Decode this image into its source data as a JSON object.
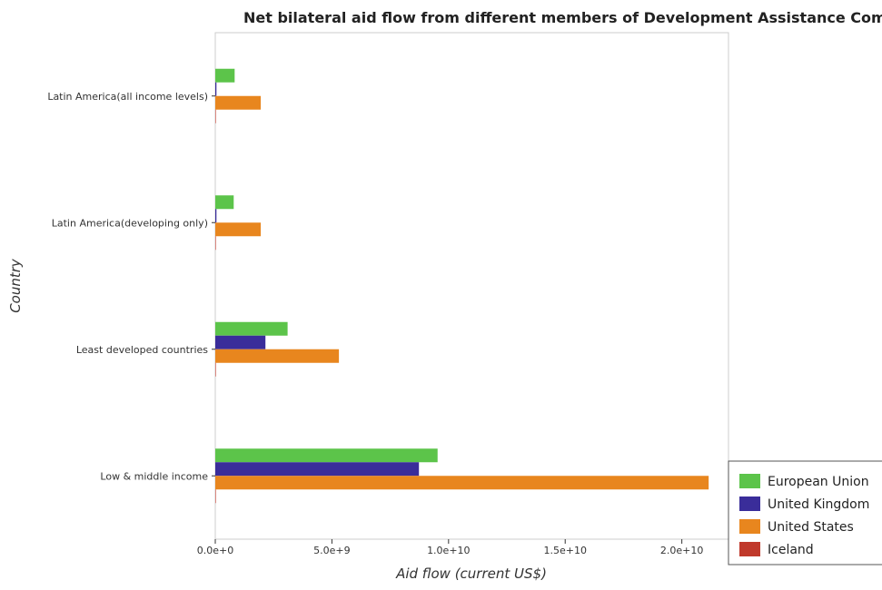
{
  "chart_data": {
    "type": "bar",
    "orientation": "horizontal",
    "title": "Net bilateral aid flow from different members of Development Assistance Committee in",
    "xlabel": "Aid flow (current US$)",
    "ylabel": "Country",
    "categories": [
      "Latin America(all income levels)",
      "Latin America(developing only)",
      "Least developed countries",
      "Low & middle income"
    ],
    "series": [
      {
        "name": "European Union",
        "color": "#5cc44a",
        "values": [
          830000000,
          790000000,
          3100000000,
          9530000000
        ]
      },
      {
        "name": "United Kingdom",
        "color": "#3a2d9a",
        "values": [
          50000000,
          50000000,
          2150000000,
          8730000000
        ]
      },
      {
        "name": "United States",
        "color": "#e8861e",
        "values": [
          1950000000,
          1950000000,
          5300000000,
          21150000000
        ]
      },
      {
        "name": "Iceland",
        "color": "#c0392b",
        "values": [
          1000000,
          1000000,
          2000000,
          5000000
        ]
      }
    ],
    "xlim": [
      0,
      22000000000
    ],
    "xticks": [
      0,
      5000000000,
      10000000000,
      15000000000,
      20000000000
    ],
    "xtick_labels": [
      "0.0e+0",
      "5.0e+9",
      "1.0e+10",
      "1.5e+10",
      "2.0e+10"
    ],
    "grid": false,
    "legend_position": "bottom-right"
  }
}
